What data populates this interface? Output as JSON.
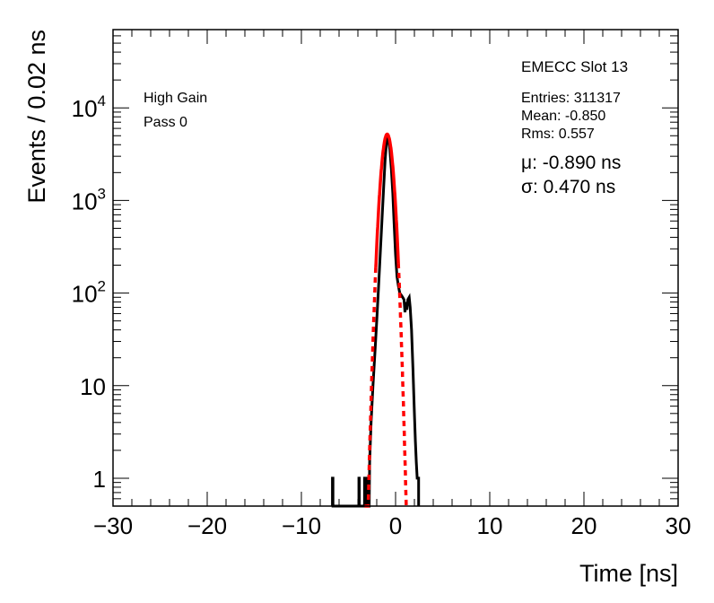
{
  "chart_data": {
    "type": "histogram",
    "xlabel": "Time [ns]",
    "ylabel": "Events / 0.02 ns",
    "xlim": [
      -30,
      30
    ],
    "ylim": [
      0.5,
      70000
    ],
    "y_scale": "log",
    "grid": false,
    "x_ticks": [
      {
        "value": -30,
        "label": "−30"
      },
      {
        "value": -20,
        "label": "−20"
      },
      {
        "value": -10,
        "label": "−10"
      },
      {
        "value": 0,
        "label": "0"
      },
      {
        "value": 10,
        "label": "10"
      },
      {
        "value": 20,
        "label": "20"
      },
      {
        "value": 30,
        "label": "30"
      }
    ],
    "y_ticks": [
      {
        "value": 1,
        "base": "1",
        "exp": ""
      },
      {
        "value": 10,
        "base": "10",
        "exp": ""
      },
      {
        "value": 100,
        "base": "10",
        "exp": "2"
      },
      {
        "value": 1000,
        "base": "10",
        "exp": "3"
      },
      {
        "value": 10000,
        "base": "10",
        "exp": "4"
      }
    ],
    "histogram": {
      "color": "#000000",
      "points": [
        [
          -6.7,
          0.5
        ],
        [
          -6.7,
          1.0
        ],
        [
          -6.65,
          1.0
        ],
        [
          -6.65,
          0.5
        ],
        [
          -3.9,
          0.5
        ],
        [
          -3.9,
          1.0
        ],
        [
          -3.85,
          1.0
        ],
        [
          -3.85,
          0.5
        ],
        [
          -3.3,
          0.5
        ],
        [
          -3.3,
          1.0
        ],
        [
          -3.2,
          1.0
        ],
        [
          -3.2,
          0.5
        ],
        [
          -3.05,
          0.5
        ],
        [
          -3.05,
          1.0
        ],
        [
          -2.95,
          1.0
        ],
        [
          -2.95,
          0.5
        ],
        [
          -2.8,
          0.5
        ],
        [
          -2.75,
          1.5
        ],
        [
          -2.6,
          4
        ],
        [
          -2.4,
          10
        ],
        [
          -2.2,
          22
        ],
        [
          -2.0,
          50
        ],
        [
          -1.8,
          120
        ],
        [
          -1.6,
          300
        ],
        [
          -1.4,
          750
        ],
        [
          -1.25,
          1500
        ],
        [
          -1.1,
          2800
        ],
        [
          -0.95,
          4300
        ],
        [
          -0.85,
          5000
        ],
        [
          -0.75,
          4600
        ],
        [
          -0.6,
          3500
        ],
        [
          -0.45,
          2200
        ],
        [
          -0.3,
          1200
        ],
        [
          -0.15,
          560
        ],
        [
          0.0,
          260
        ],
        [
          0.15,
          150
        ],
        [
          0.3,
          120
        ],
        [
          0.45,
          100
        ],
        [
          0.6,
          95
        ],
        [
          0.75,
          90
        ],
        [
          0.9,
          85
        ],
        [
          1.0,
          62
        ],
        [
          1.1,
          80
        ],
        [
          1.2,
          66
        ],
        [
          1.3,
          85
        ],
        [
          1.45,
          90
        ],
        [
          1.55,
          70
        ],
        [
          1.7,
          40
        ],
        [
          1.85,
          15
        ],
        [
          2.0,
          5
        ],
        [
          2.1,
          2.5
        ],
        [
          2.2,
          1.5
        ],
        [
          2.3,
          1.0
        ],
        [
          2.45,
          1.0
        ],
        [
          2.45,
          0.5
        ]
      ]
    },
    "fit": {
      "type": "gaussian",
      "mean": -0.89,
      "sigma": 0.47,
      "amplitude": 5200,
      "color": "#ff0000",
      "solid_range": [
        -2.1,
        0.3
      ],
      "dashed_ranges": [
        [
          -3.3,
          -2.1
        ],
        [
          0.3,
          1.35
        ]
      ]
    },
    "annotations": {
      "gain": "High Gain",
      "pass": "Pass 0",
      "title": "EMECC Slot 13",
      "entries": "Entries: 311317",
      "mean": "Mean: -0.850",
      "rms": "Rms: 0.557",
      "mu": "μ: -0.890 ns",
      "sigma": "σ: 0.470 ns"
    }
  }
}
